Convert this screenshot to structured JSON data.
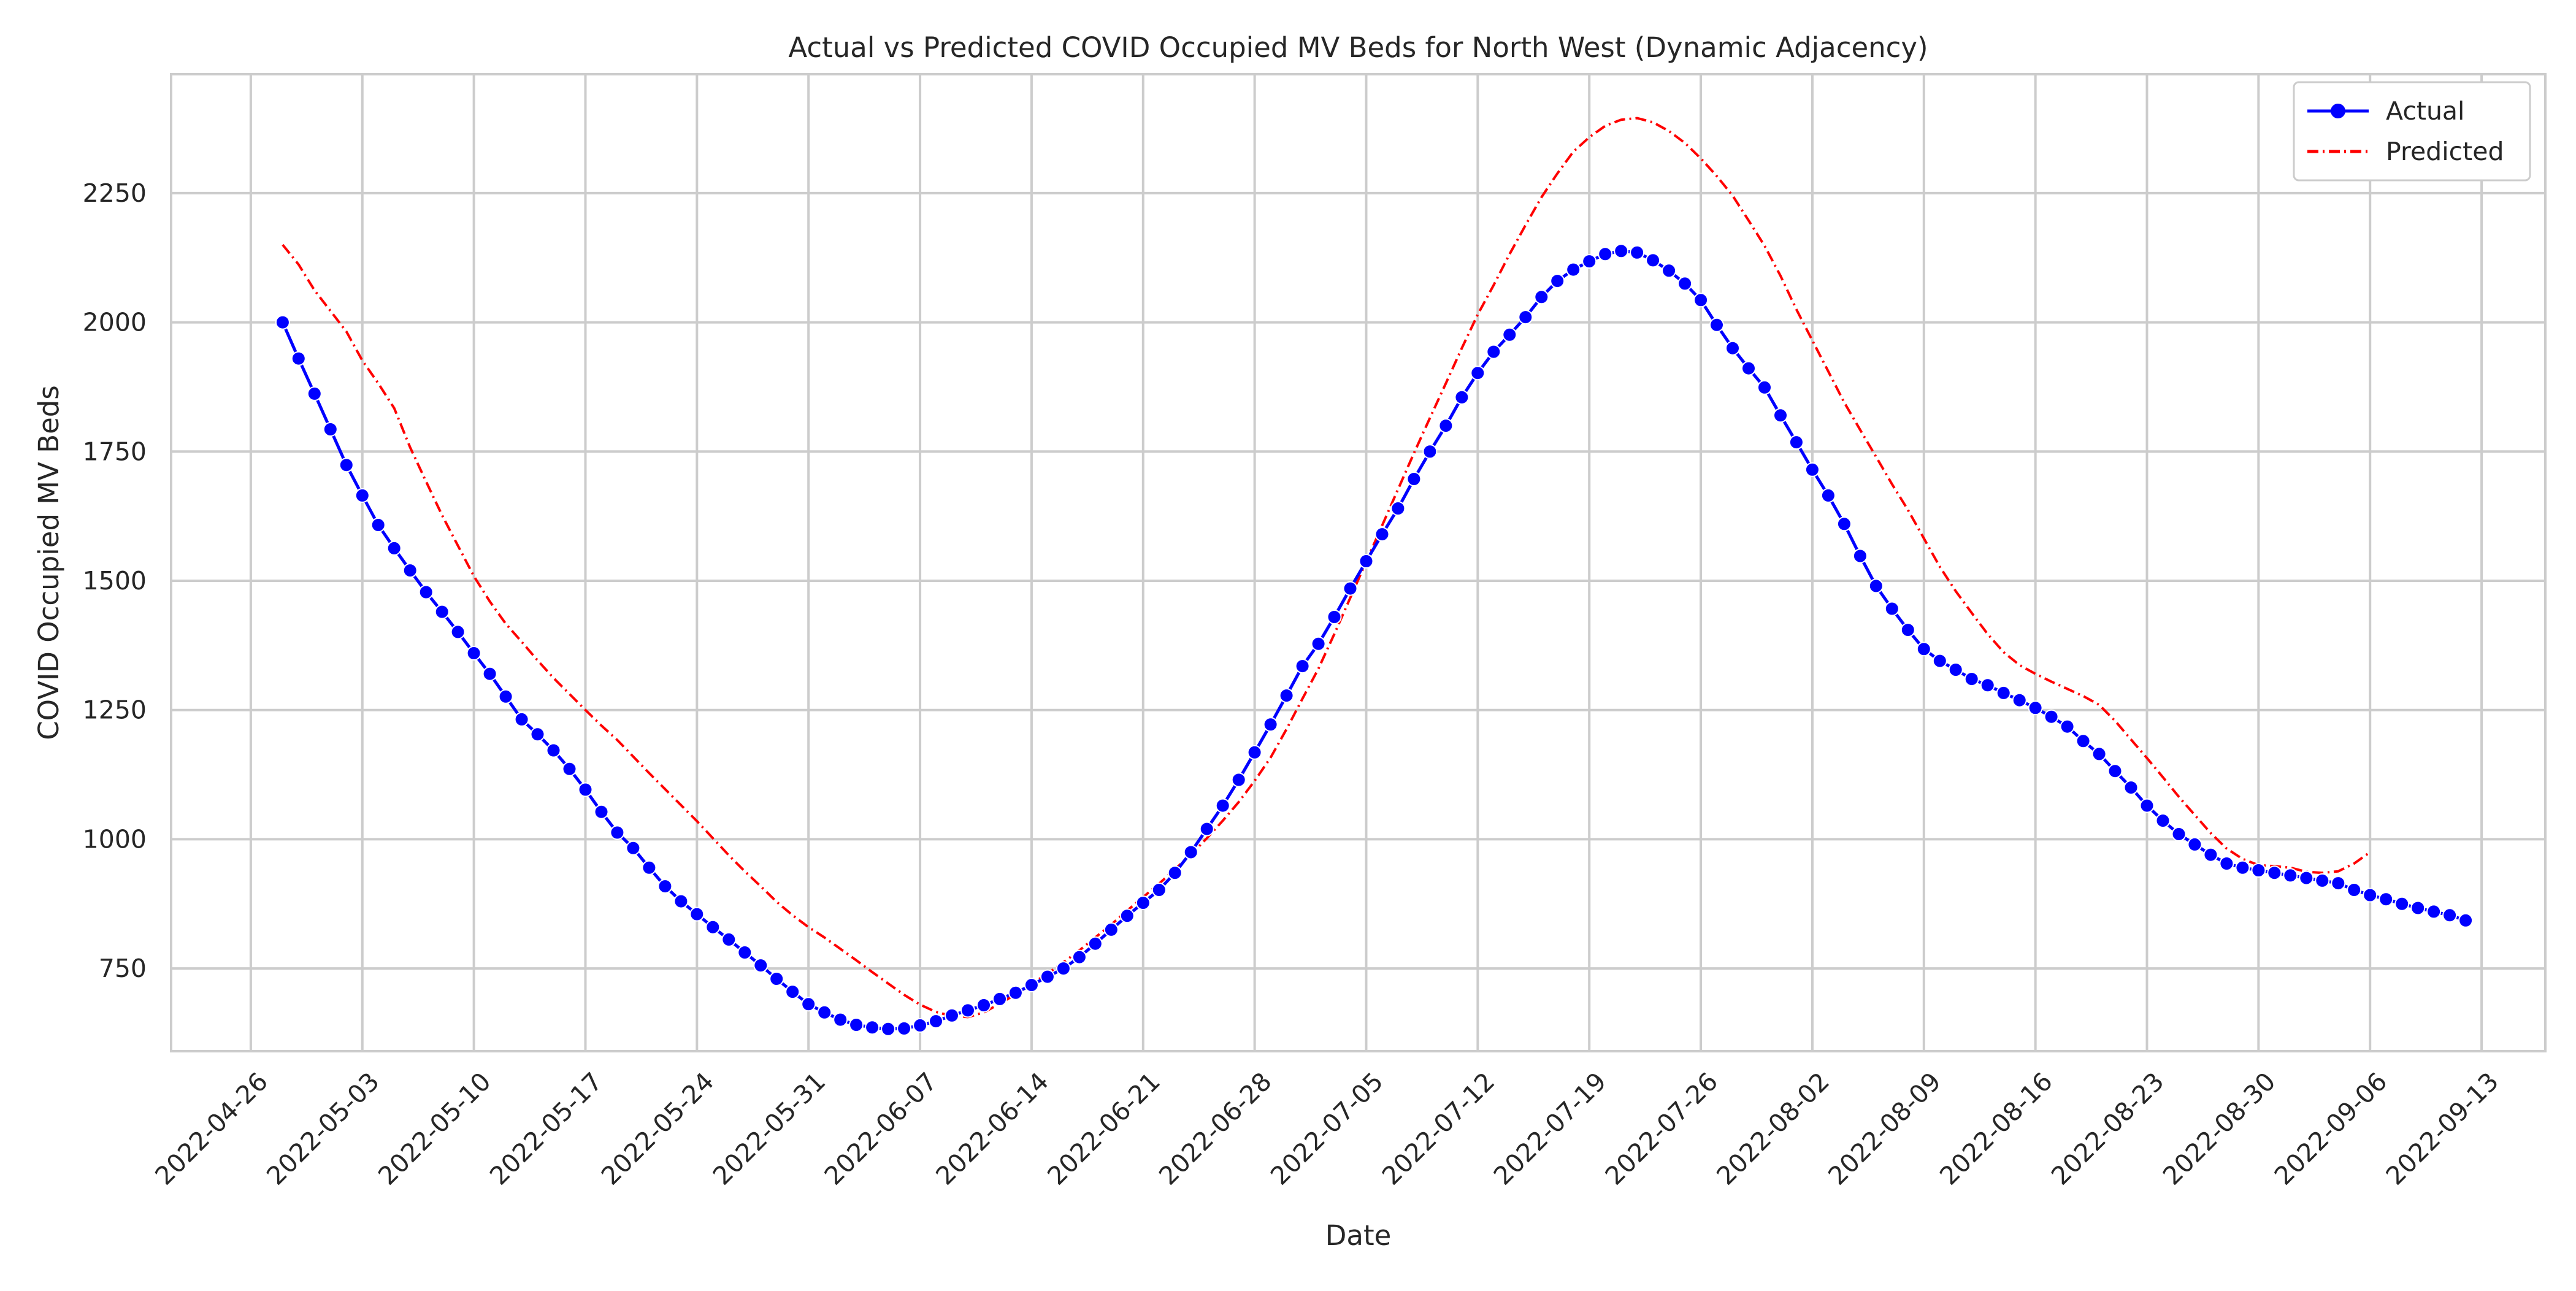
{
  "chart_data": {
    "type": "line",
    "title": "Actual vs Predicted COVID Occupied MV Beds for North West (Dynamic Adjacency)",
    "xlabel": "Date",
    "ylabel": "COVID Occupied MV Beds",
    "x_axis_type": "date",
    "x_range": [
      "2022-04-21",
      "2022-09-17"
    ],
    "x_ticks": [
      "2022-04-26",
      "2022-05-03",
      "2022-05-10",
      "2022-05-17",
      "2022-05-24",
      "2022-05-31",
      "2022-06-07",
      "2022-06-14",
      "2022-06-21",
      "2022-06-28",
      "2022-07-05",
      "2022-07-12",
      "2022-07-19",
      "2022-07-26",
      "2022-08-02",
      "2022-08-09",
      "2022-08-16",
      "2022-08-23",
      "2022-08-30",
      "2022-09-06",
      "2022-09-13"
    ],
    "ylim": [
      590,
      2480
    ],
    "y_ticks": [
      750,
      1000,
      1250,
      1500,
      1750,
      2000,
      2250
    ],
    "grid": true,
    "legend_position": "top-right",
    "series": [
      {
        "name": "Actual",
        "color": "#0000ff",
        "style": "solid-with-circle-markers",
        "start_date": "2022-04-28",
        "step_days": 1,
        "values": [
          2000,
          1930,
          1862,
          1793,
          1724,
          1665,
          1608,
          1563,
          1520,
          1478,
          1440,
          1401,
          1360,
          1320,
          1276,
          1232,
          1203,
          1172,
          1136,
          1096,
          1053,
          1013,
          983,
          945,
          909,
          880,
          855,
          830,
          806,
          781,
          756,
          730,
          705,
          681,
          665,
          651,
          641,
          636,
          633,
          634,
          640,
          648,
          659,
          669,
          679,
          691,
          703,
          718,
          734,
          750,
          772,
          798,
          825,
          852,
          877,
          902,
          935,
          975,
          1020,
          1065,
          1115,
          1168,
          1222,
          1278,
          1335,
          1378,
          1430,
          1485,
          1538,
          1590,
          1640,
          1697,
          1750,
          1800,
          1855,
          1902,
          1943,
          1976,
          2010,
          2049,
          2080,
          2102,
          2118,
          2132,
          2138,
          2135,
          2120,
          2100,
          2075,
          2043,
          1995,
          1950,
          1911,
          1874,
          1820,
          1768,
          1715,
          1665,
          1610,
          1548,
          1490,
          1446,
          1405,
          1368,
          1345,
          1328,
          1310,
          1298,
          1283,
          1269,
          1254,
          1237,
          1218,
          1190,
          1165,
          1132,
          1100,
          1065,
          1036,
          1010,
          990,
          970,
          953,
          945,
          940,
          935,
          930,
          925,
          920,
          915,
          902,
          892,
          884,
          875,
          867,
          860,
          853,
          843
        ]
      },
      {
        "name": "Predicted",
        "color": "#ff0000",
        "style": "dash-dot",
        "start_date": "2022-04-28",
        "step_days": 1,
        "values": [
          2150,
          2112,
          2062,
          2022,
          1982,
          1926,
          1882,
          1834,
          1758,
          1692,
          1627,
          1568,
          1509,
          1460,
          1417,
          1382,
          1346,
          1312,
          1281,
          1250,
          1220,
          1192,
          1160,
          1128,
          1097,
          1066,
          1035,
          1002,
          969,
          938,
          909,
          879,
          853,
          830,
          810,
          788,
          766,
          743,
          721,
          699,
          680,
          666,
          658,
          656,
          665,
          682,
          700,
          720,
          740,
          762,
          785,
          810,
          835,
          862,
          888,
          914,
          942,
          970,
          1002,
          1036,
          1072,
          1113,
          1158,
          1213,
          1272,
          1330,
          1397,
          1467,
          1537,
          1607,
          1677,
          1747,
          1815,
          1882,
          1950,
          2015,
          2072,
          2132,
          2188,
          2242,
          2288,
          2330,
          2358,
          2380,
          2392,
          2395,
          2387,
          2370,
          2347,
          2317,
          2283,
          2245,
          2197,
          2148,
          2090,
          2025,
          1965,
          1905,
          1845,
          1792,
          1740,
          1687,
          1637,
          1582,
          1527,
          1480,
          1438,
          1397,
          1362,
          1337,
          1320,
          1305,
          1291,
          1277,
          1260,
          1229,
          1193,
          1157,
          1120,
          1082,
          1047,
          1012,
          982,
          962,
          950,
          948,
          945,
          937,
          935,
          938,
          953,
          975
        ]
      }
    ]
  }
}
